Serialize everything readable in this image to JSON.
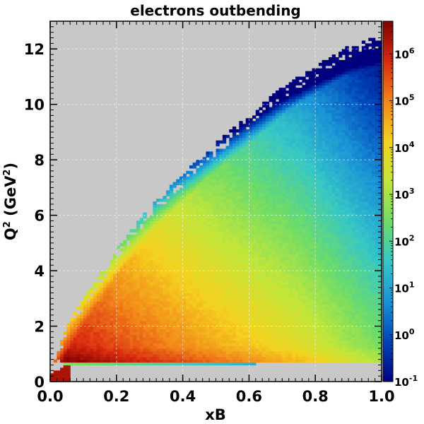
{
  "chart_data": {
    "type": "heatmap",
    "title": "electrons outbending",
    "xlabel": "xB",
    "ylabel_main": "Q",
    "ylabel_sup": "2",
    "ylabel_paren_open": " (GeV",
    "ylabel_paren_sup": "2",
    "ylabel_paren_close": ")",
    "xlim": [
      0.0,
      1.0
    ],
    "ylim": [
      0,
      13
    ],
    "x_ticks": [
      {
        "value": 0.0,
        "label": "0.0"
      },
      {
        "value": 0.2,
        "label": "0.2"
      },
      {
        "value": 0.4,
        "label": "0.4"
      },
      {
        "value": 0.6,
        "label": "0.6"
      },
      {
        "value": 0.8,
        "label": "0.8"
      },
      {
        "value": 1.0,
        "label": "1.0"
      }
    ],
    "y_ticks": [
      {
        "value": 0,
        "label": "0"
      },
      {
        "value": 2,
        "label": "2"
      },
      {
        "value": 4,
        "label": "4"
      },
      {
        "value": 6,
        "label": "6"
      },
      {
        "value": 8,
        "label": "8"
      },
      {
        "value": 10,
        "label": "10"
      },
      {
        "value": 12,
        "label": "12"
      }
    ],
    "colorbar": {
      "scale": "log",
      "range_exp": [
        -1,
        6.7
      ],
      "ticks": [
        {
          "exp": -1,
          "base": "10",
          "sup": "-1"
        },
        {
          "exp": 0,
          "base": "10",
          "sup": "0"
        },
        {
          "exp": 1,
          "base": "10",
          "sup": "1"
        },
        {
          "exp": 2,
          "base": "10",
          "sup": "2"
        },
        {
          "exp": 3,
          "base": "10",
          "sup": "3"
        },
        {
          "exp": 4,
          "base": "10",
          "sup": "4"
        },
        {
          "exp": 5,
          "base": "10",
          "sup": "5"
        },
        {
          "exp": 6,
          "base": "10",
          "sup": "6"
        }
      ]
    },
    "grid": true,
    "background_color": "#c8c8c8",
    "colormap": [
      "#00007f",
      "#0045b8",
      "#1a92d6",
      "#36c7c7",
      "#6edc68",
      "#c2e63a",
      "#f5d21e",
      "#f2861a",
      "#d92a10",
      "#7f0000"
    ],
    "distribution": {
      "description_curve_q2_max_at_x": [
        [
          0.0,
          0.3
        ],
        [
          0.05,
          2.0
        ],
        [
          0.1,
          3.0
        ],
        [
          0.2,
          4.8
        ],
        [
          0.3,
          6.3
        ],
        [
          0.4,
          7.5
        ],
        [
          0.5,
          8.6
        ],
        [
          0.6,
          9.6
        ],
        [
          0.7,
          10.6
        ],
        [
          0.8,
          11.4
        ],
        [
          0.9,
          12.1
        ],
        [
          1.0,
          12.5
        ]
      ],
      "q2_min": 0.75,
      "peak_log_count": 6.5
    }
  }
}
